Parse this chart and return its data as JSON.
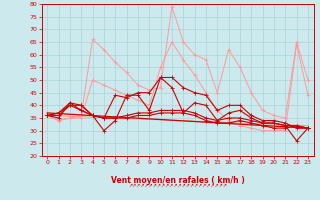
{
  "xlabel": "Vent moyen/en rafales ( km/h )",
  "bg_color": "#cceaee",
  "grid_color": "#aad4d8",
  "line_color_dark": "#cc0000",
  "line_color_light": "#ff9999",
  "xlim": [
    -0.5,
    23.5
  ],
  "ylim": [
    20,
    80
  ],
  "yticks": [
    20,
    25,
    30,
    35,
    40,
    45,
    50,
    55,
    60,
    65,
    70,
    75,
    80
  ],
  "xticks": [
    0,
    1,
    2,
    3,
    4,
    5,
    6,
    7,
    8,
    9,
    10,
    11,
    12,
    13,
    14,
    15,
    16,
    17,
    18,
    19,
    20,
    21,
    22,
    23
  ],
  "series_light": [
    [
      36,
      34,
      35,
      36,
      66,
      62,
      57,
      53,
      48,
      46,
      47,
      79,
      65,
      60,
      58,
      45,
      62,
      55,
      45,
      38,
      36,
      35,
      65,
      50
    ],
    [
      36,
      34,
      35,
      35,
      50,
      48,
      46,
      44,
      42,
      40,
      55,
      65,
      58,
      52,
      45,
      38,
      34,
      32,
      31,
      30,
      30,
      30,
      64,
      44
    ]
  ],
  "trend_light": [
    36,
    32
  ],
  "series_dark": [
    [
      36,
      37,
      41,
      40,
      36,
      35,
      44,
      43,
      45,
      45,
      51,
      51,
      47,
      45,
      44,
      38,
      40,
      40,
      36,
      34,
      34,
      33,
      31,
      31
    ],
    [
      36,
      35,
      41,
      38,
      36,
      30,
      34,
      44,
      44,
      38,
      51,
      47,
      37,
      41,
      40,
      34,
      37,
      38,
      35,
      33,
      33,
      32,
      26,
      31
    ],
    [
      36,
      37,
      40,
      38,
      36,
      35,
      35,
      36,
      37,
      37,
      38,
      38,
      38,
      37,
      35,
      34,
      35,
      35,
      34,
      33,
      33,
      32,
      32,
      31
    ],
    [
      36,
      36,
      40,
      40,
      36,
      35,
      35,
      35,
      36,
      36,
      37,
      37,
      37,
      36,
      34,
      33,
      33,
      34,
      33,
      32,
      31,
      31,
      32,
      31
    ]
  ],
  "trend_dark": [
    37,
    31
  ],
  "wind_arrows": "????????????????????????????????????????????????????????????????????????????????????????????????????"
}
